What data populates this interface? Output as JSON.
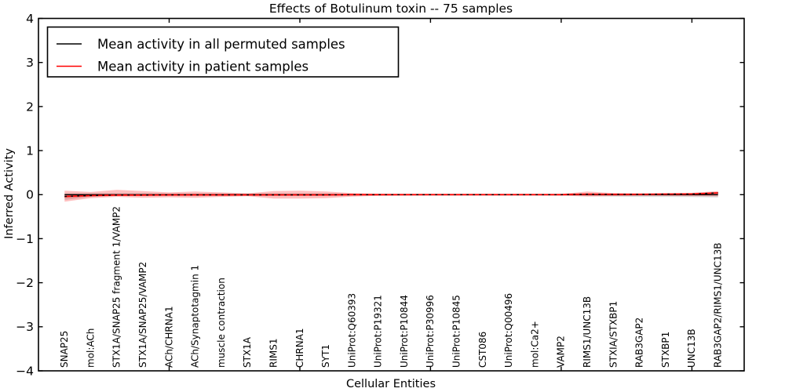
{
  "figure": {
    "background": "#ffffff",
    "frame_color": "#000000"
  },
  "chart_data": {
    "type": "line",
    "title": "Effects of Botulinum toxin -- 75 samples",
    "xlabel": "Cellular Entities",
    "ylabel": "Inferred Activity",
    "ylim": [
      -4,
      4
    ],
    "xlim_units": 27,
    "grid": false,
    "legend_position": "upper left",
    "yticks": [
      4,
      3,
      2,
      1,
      0,
      -1,
      -2,
      -3,
      -4
    ],
    "ytick_labels": [
      "4",
      "3",
      "2",
      "1",
      "0",
      "−1",
      "−2",
      "−3",
      "−4"
    ],
    "xticks_numeric": [
      5,
      10,
      15,
      20,
      25
    ],
    "categories": [
      "SNAP25",
      "mol:ACh",
      "STX1A/SNAP25 fragment 1/VAMP2",
      "STX1A/SNAP25/VAMP2",
      "ACh/CHRNA1",
      "ACh/Synaptotagmin 1",
      "muscle contraction",
      "STX1A",
      "RIMS1",
      "CHRNA1",
      "SYT1",
      "UniProt:Q60393",
      "UniProt:P19321",
      "UniProt:P10844",
      "UniProt:P30996",
      "UniProt:P10845",
      "CST086",
      "UniProt:Q00496",
      "mol:Ca2+",
      "VAMP2",
      "RIMS1/UNC13B",
      "STXIA/STXBP1",
      "RAB3GAP2",
      "STXBP1",
      "UNC13B",
      "RAB3GAP2/RIMS1/UNC13B"
    ],
    "series": [
      {
        "name": "Mean activity in all permuted samples",
        "color": "#000000",
        "linewidth": 1.3,
        "values": [
          0,
          0,
          0,
          0,
          0,
          0,
          0,
          0,
          0,
          0,
          0,
          0,
          0,
          0,
          0,
          0,
          0,
          0,
          0,
          0,
          0,
          0,
          0,
          0,
          0,
          0
        ],
        "band_color": "#000000",
        "band_alpha": 0.14,
        "band_upper": [
          0.03,
          0.025,
          0.025,
          0.025,
          0.02,
          0.02,
          0.02,
          0.02,
          0.02,
          0.02,
          0.02,
          0.015,
          0.015,
          0.015,
          0.015,
          0.015,
          0.015,
          0.015,
          0.015,
          0.015,
          0.02,
          0.02,
          0.02,
          0.02,
          0.02,
          0.025
        ],
        "band_lower": [
          -0.12,
          -0.05,
          -0.03,
          -0.03,
          -0.03,
          -0.03,
          -0.03,
          -0.025,
          -0.03,
          -0.03,
          -0.03,
          -0.02,
          -0.02,
          -0.02,
          -0.02,
          -0.02,
          -0.02,
          -0.02,
          -0.02,
          -0.02,
          -0.03,
          -0.045,
          -0.05,
          -0.05,
          -0.055,
          -0.065
        ]
      },
      {
        "name": "Mean activity in patient samples",
        "color": "#ff0000",
        "linewidth": 1.6,
        "values": [
          -0.04,
          -0.02,
          -0.01,
          -0.01,
          -0.005,
          -0.005,
          -0.005,
          -0.005,
          -0.005,
          -0.005,
          -0.005,
          0,
          0,
          0,
          0,
          0,
          0,
          0,
          0,
          0,
          0.01,
          0.005,
          0.007,
          0.011,
          0.014,
          0.04
        ],
        "band_color": "#ff0000",
        "band_alpha": 0.25,
        "band_upper": [
          0.09,
          0.06,
          0.11,
          0.08,
          0.05,
          0.07,
          0.05,
          0.03,
          0.08,
          0.09,
          0.07,
          0.035,
          0.018,
          0.014,
          0.012,
          0.012,
          0.012,
          0.012,
          0.012,
          0.015,
          0.07,
          0.036,
          0.027,
          0.03,
          0.04,
          0.08
        ],
        "band_lower": [
          -0.16,
          -0.08,
          -0.05,
          -0.07,
          -0.06,
          -0.07,
          -0.05,
          -0.035,
          -0.09,
          -0.09,
          -0.08,
          -0.045,
          -0.027,
          -0.02,
          -0.014,
          -0.014,
          -0.014,
          -0.014,
          -0.014,
          -0.02,
          -0.045,
          -0.032,
          -0.027,
          -0.03,
          -0.035,
          -0.04
        ],
        "band_inner_upper": [
          -0.02,
          0.0,
          0.01,
          0.01,
          0.015,
          0.015,
          0.015,
          0.015,
          0.015,
          0.015,
          0.015,
          0.02,
          0.02,
          0.02,
          0.02,
          0.02,
          0.02,
          0.02,
          0.02,
          0.02,
          0.03,
          0.025,
          0.027,
          0.031,
          0.034,
          0.06
        ],
        "band_inner_lower": [
          -0.07,
          -0.04,
          -0.03,
          -0.03,
          -0.025,
          -0.025,
          -0.025,
          -0.025,
          -0.025,
          -0.025,
          -0.025,
          -0.02,
          -0.02,
          -0.02,
          -0.02,
          -0.02,
          -0.02,
          -0.02,
          -0.02,
          -0.02,
          -0.01,
          -0.015,
          -0.013,
          -0.009,
          -0.006,
          0.02
        ]
      }
    ],
    "overlay_dotted_line": {
      "style": "dotted",
      "color": "#000000",
      "follows_series": 1
    }
  }
}
